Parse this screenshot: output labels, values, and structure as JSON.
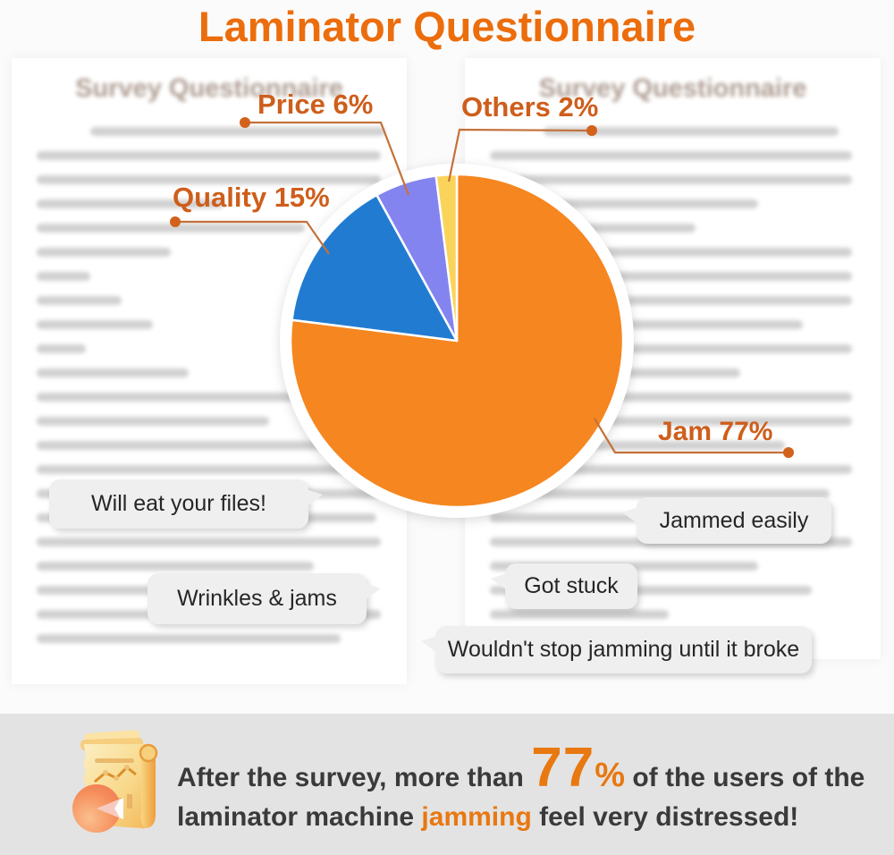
{
  "title": "Laminator Questionnaire",
  "colors": {
    "title_orange": "#EC6D0C",
    "label_orange": "#CE5E1B",
    "leader_line": "#C4713A",
    "leader_dot": "#D2611C",
    "banner_bg": "#E3E3E3",
    "banner_text": "#3A3A3A",
    "banner_accent": "#E87810",
    "bubble_bg": "#EFEFEF",
    "bubble_text": "#262626",
    "pie_orange": "#F6861F",
    "pie_blue": "#217CD1",
    "pie_purple": "#8484F0",
    "pie_yellow": "#FAD45A"
  },
  "chart_data": {
    "type": "pie",
    "title": "Laminator Questionnaire",
    "categories": [
      "Jam",
      "Quality",
      "Price",
      "Others"
    ],
    "values": [
      77,
      15,
      6,
      2
    ],
    "unit": "%",
    "colors": [
      "#F6861F",
      "#217CD1",
      "#8484F0",
      "#FAD45A"
    ],
    "start_angle_deg": 0,
    "direction": "clockwise",
    "legend": "none",
    "slice_labels": [
      "Jam 77%",
      "Quality 15%",
      "Price 6%",
      "Others 2%"
    ]
  },
  "background_docs": {
    "left": {
      "heading": "Survey Questionnaire"
    },
    "right": {
      "heading": "Survey Questionnaire"
    }
  },
  "bubbles": [
    {
      "text": "Will eat your files!"
    },
    {
      "text": "Jammed easily"
    },
    {
      "text": "Wrinkles & jams"
    },
    {
      "text": "Got stuck"
    },
    {
      "text": "Wouldn't stop jamming until it broke"
    }
  ],
  "banner": {
    "line1_prefix": "After the survey, more than ",
    "big_number": "77",
    "percent_sign": "%",
    "line1_suffix": " of the users of the",
    "line2_prefix": "laminator machine ",
    "line2_accent": "jamming",
    "line2_suffix": " feel very distressed!"
  }
}
